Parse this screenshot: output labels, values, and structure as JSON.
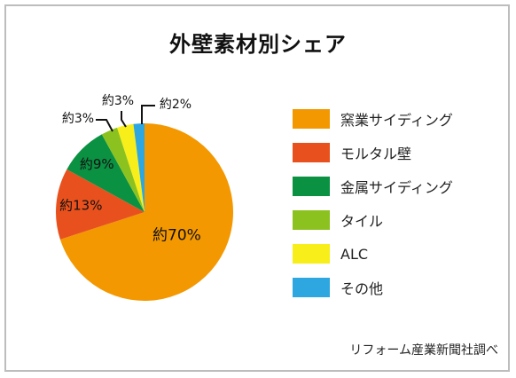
{
  "chart_data": {
    "type": "pie",
    "title": "外壁素材別シェア",
    "categories": [
      "窯業サイディング",
      "モルタル壁",
      "金属サイディング",
      "タイル",
      "ALC",
      "その他"
    ],
    "values": [
      70,
      13,
      9,
      3,
      3,
      2
    ],
    "data_labels": [
      "約70%",
      "約13%",
      "約9%",
      "約3%",
      "約3%",
      "約2%"
    ],
    "colors": [
      "#f39800",
      "#e8511d",
      "#0a9142",
      "#8cc21f",
      "#f8ee1a",
      "#2ea7e0"
    ],
    "start": "12 o'clock",
    "direction": "clockwise",
    "legend_position": "right"
  },
  "source": "リフォーム産業新聞社調べ"
}
